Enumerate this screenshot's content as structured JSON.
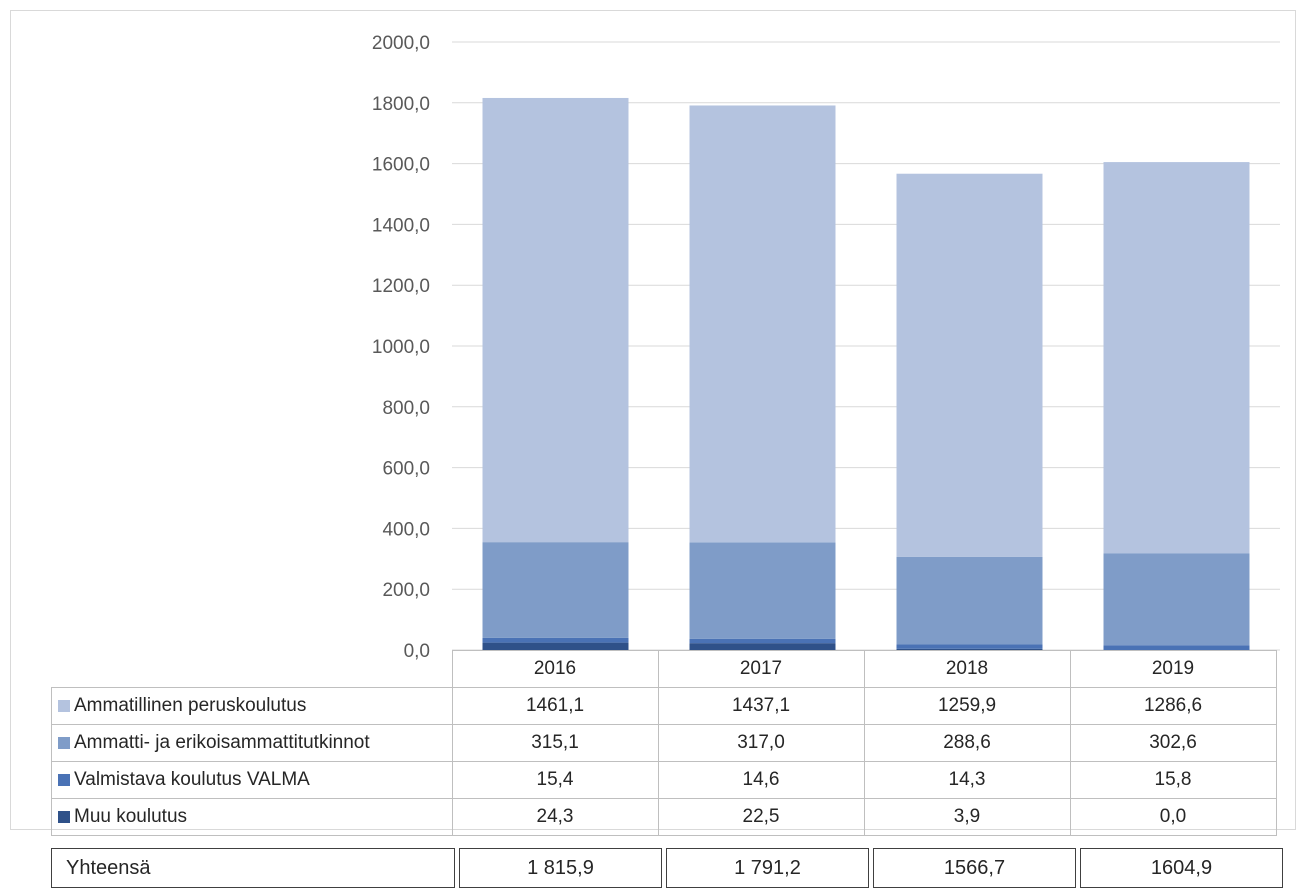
{
  "chart_data": {
    "type": "bar",
    "stacked": true,
    "categories": [
      "2016",
      "2017",
      "2018",
      "2019"
    ],
    "y_ticks": [
      "0,0",
      "200,0",
      "400,0",
      "600,0",
      "800,0",
      "1000,0",
      "1200,0",
      "1400,0",
      "1600,0",
      "1800,0",
      "2000,0"
    ],
    "ylim": [
      0,
      2000
    ],
    "grid": true,
    "series": [
      {
        "name": "Muu koulutus",
        "color": "#2f5189",
        "values": [
          24.3,
          22.5,
          3.9,
          0.0
        ],
        "labels": [
          "24,3",
          "22,5",
          "3,9",
          "0,0"
        ]
      },
      {
        "name": "Valmistava koulutus VALMA",
        "color": "#4a72b5",
        "values": [
          15.4,
          14.6,
          14.3,
          15.8
        ],
        "labels": [
          "15,4",
          "14,6",
          "14,3",
          "15,8"
        ]
      },
      {
        "name": "Ammatti- ja erikoisammattitutkinnot",
        "color": "#7f9cc8",
        "values": [
          315.1,
          317.0,
          288.6,
          302.6
        ],
        "labels": [
          "315,1",
          "317,0",
          "288,6",
          "302,6"
        ]
      },
      {
        "name": "Ammatillinen peruskoulutus",
        "color": "#b4c3df",
        "values": [
          1461.1,
          1437.1,
          1259.9,
          1286.6
        ],
        "labels": [
          "1461,1",
          "1437,1",
          "1259,9",
          "1286,6"
        ]
      }
    ],
    "table_row_order": [
      3,
      2,
      1,
      0
    ]
  },
  "totals": {
    "label": "Yhteensä",
    "values": [
      "1 815,9",
      "1 791,2",
      "1566,7",
      "1604,9"
    ]
  }
}
